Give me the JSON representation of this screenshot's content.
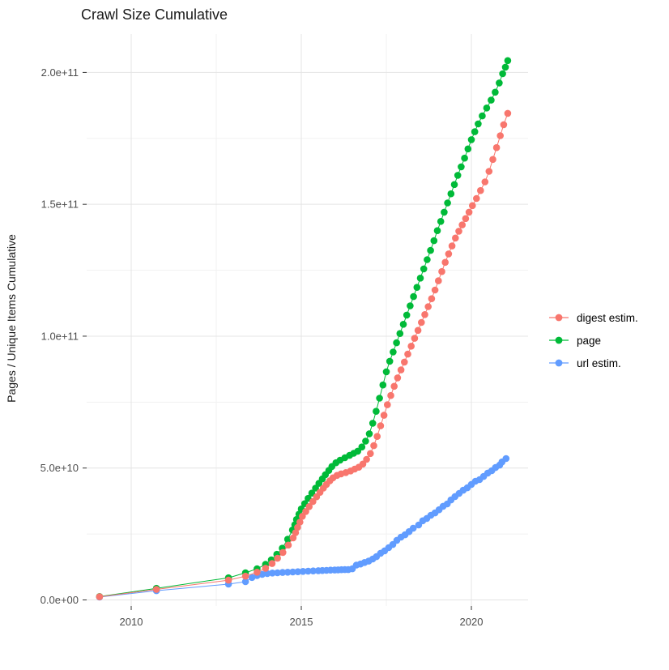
{
  "title": "Crawl Size Cumulative",
  "y_axis": {
    "label": "Pages / Unique Items Cumulative",
    "tick_labels": [
      "0.0e+00",
      "5.0e+10",
      "1.0e+11",
      "1.5e+11",
      "2.0e+11"
    ]
  },
  "x_axis": {
    "tick_labels": [
      "2010",
      "2015",
      "2020"
    ]
  },
  "chart_data": {
    "type": "line",
    "marker": "point",
    "title": "Crawl Size Cumulative",
    "xlabel": "",
    "ylabel": "Pages / Unique Items Cumulative",
    "x_ticks": [
      2010,
      2015,
      2020
    ],
    "x_minor_ticks": [
      2012.5,
      2017.5
    ],
    "y_ticks": [
      0,
      50,
      100,
      150,
      200
    ],
    "y_minor_ticks": [
      25,
      75,
      125,
      175
    ],
    "y_tick_labels": [
      "0.0e+00",
      "5.0e+10",
      "1.0e+11",
      "1.5e+11",
      "2.0e+11"
    ],
    "x_tick_labels": [
      "2010",
      "2015",
      "2020"
    ],
    "xlim": [
      2008.7,
      2021.7
    ],
    "ylim_e9": [
      0,
      214.5
    ],
    "value_unit": "billions of pages / unique items (1 unit = 1e9)",
    "grid": true,
    "legend_position": "right",
    "series": [
      {
        "name": "digest estim.",
        "color": "#F8766D",
        "points": [
          [
            2009.07,
            1.2
          ],
          [
            2010.74,
            4.0
          ],
          [
            2012.86,
            7.5
          ],
          [
            2013.36,
            9.0
          ],
          [
            2013.7,
            10.5
          ],
          [
            2013.95,
            12.0
          ],
          [
            2014.14,
            13.8
          ],
          [
            2014.3,
            15.8
          ],
          [
            2014.46,
            18.0
          ],
          [
            2014.62,
            20.8
          ],
          [
            2014.76,
            23.5
          ],
          [
            2014.83,
            25.5
          ],
          [
            2014.89,
            27.5
          ],
          [
            2014.96,
            29.5
          ],
          [
            2015.03,
            31.7
          ],
          [
            2015.13,
            33.5
          ],
          [
            2015.23,
            35.4
          ],
          [
            2015.34,
            37.3
          ],
          [
            2015.45,
            39.1
          ],
          [
            2015.55,
            40.8
          ],
          [
            2015.65,
            42.4
          ],
          [
            2015.74,
            43.8
          ],
          [
            2015.84,
            45.2
          ],
          [
            2015.93,
            46.3
          ],
          [
            2016.05,
            47.2
          ],
          [
            2016.17,
            47.8
          ],
          [
            2016.31,
            48.3
          ],
          [
            2016.45,
            48.9
          ],
          [
            2016.57,
            49.6
          ],
          [
            2016.69,
            50.3
          ],
          [
            2016.81,
            51.5
          ],
          [
            2016.92,
            53.3
          ],
          [
            2017.03,
            55.5
          ],
          [
            2017.13,
            58.5
          ],
          [
            2017.23,
            62.0
          ],
          [
            2017.33,
            66.0
          ],
          [
            2017.43,
            70.0
          ],
          [
            2017.53,
            74.0
          ],
          [
            2017.63,
            77.5
          ],
          [
            2017.73,
            81.0
          ],
          [
            2017.83,
            84.2
          ],
          [
            2017.93,
            87.2
          ],
          [
            2018.03,
            90.2
          ],
          [
            2018.13,
            93.2
          ],
          [
            2018.23,
            96.2
          ],
          [
            2018.33,
            99.2
          ],
          [
            2018.43,
            102.2
          ],
          [
            2018.53,
            105.2
          ],
          [
            2018.63,
            108.2
          ],
          [
            2018.73,
            111.2
          ],
          [
            2018.83,
            114.2
          ],
          [
            2018.93,
            117.5
          ],
          [
            2019.03,
            121.0
          ],
          [
            2019.13,
            124.5
          ],
          [
            2019.23,
            128.0
          ],
          [
            2019.33,
            131.2
          ],
          [
            2019.43,
            134.2
          ],
          [
            2019.53,
            137.2
          ],
          [
            2019.63,
            139.8
          ],
          [
            2019.73,
            142.2
          ],
          [
            2019.83,
            144.6
          ],
          [
            2019.93,
            147.0
          ],
          [
            2020.03,
            149.5
          ],
          [
            2020.15,
            152.2
          ],
          [
            2020.27,
            155.2
          ],
          [
            2020.4,
            158.5
          ],
          [
            2020.52,
            162.5
          ],
          [
            2020.63,
            167.0
          ],
          [
            2020.74,
            171.5
          ],
          [
            2020.85,
            176.0
          ],
          [
            2020.95,
            180.2
          ],
          [
            2021.07,
            184.5
          ]
        ]
      },
      {
        "name": "page",
        "color": "#00BA38",
        "points": [
          [
            2009.07,
            1.3
          ],
          [
            2010.74,
            4.4
          ],
          [
            2012.86,
            8.4
          ],
          [
            2013.36,
            10.3
          ],
          [
            2013.7,
            11.8
          ],
          [
            2013.95,
            13.5
          ],
          [
            2014.12,
            15.2
          ],
          [
            2014.28,
            17.3
          ],
          [
            2014.44,
            19.6
          ],
          [
            2014.6,
            23.0
          ],
          [
            2014.74,
            26.5
          ],
          [
            2014.81,
            28.5
          ],
          [
            2014.86,
            30.5
          ],
          [
            2014.93,
            32.5
          ],
          [
            2015.0,
            34.5
          ],
          [
            2015.1,
            36.5
          ],
          [
            2015.2,
            38.5
          ],
          [
            2015.31,
            40.5
          ],
          [
            2015.42,
            42.4
          ],
          [
            2015.52,
            44.2
          ],
          [
            2015.62,
            45.9
          ],
          [
            2015.71,
            47.5
          ],
          [
            2015.81,
            49.1
          ],
          [
            2015.9,
            50.6
          ],
          [
            2016.02,
            52.0
          ],
          [
            2016.14,
            53.0
          ],
          [
            2016.28,
            53.9
          ],
          [
            2016.42,
            54.8
          ],
          [
            2016.54,
            55.6
          ],
          [
            2016.66,
            56.4
          ],
          [
            2016.78,
            58.0
          ],
          [
            2016.89,
            60.2
          ],
          [
            2017.0,
            63.0
          ],
          [
            2017.1,
            67.0
          ],
          [
            2017.2,
            71.5
          ],
          [
            2017.3,
            76.5
          ],
          [
            2017.4,
            81.5
          ],
          [
            2017.5,
            86.5
          ],
          [
            2017.6,
            90.5
          ],
          [
            2017.7,
            94.0
          ],
          [
            2017.8,
            97.5
          ],
          [
            2017.9,
            101.0
          ],
          [
            2018.0,
            104.5
          ],
          [
            2018.1,
            108.0
          ],
          [
            2018.2,
            111.5
          ],
          [
            2018.3,
            115.0
          ],
          [
            2018.4,
            118.5
          ],
          [
            2018.5,
            122.0
          ],
          [
            2018.6,
            125.5
          ],
          [
            2018.7,
            129.0
          ],
          [
            2018.8,
            132.5
          ],
          [
            2018.9,
            136.2
          ],
          [
            2019.0,
            140.0
          ],
          [
            2019.1,
            143.5
          ],
          [
            2019.2,
            147.0
          ],
          [
            2019.3,
            150.5
          ],
          [
            2019.4,
            154.0
          ],
          [
            2019.5,
            157.5
          ],
          [
            2019.6,
            161.0
          ],
          [
            2019.7,
            164.2
          ],
          [
            2019.8,
            167.5
          ],
          [
            2019.9,
            171.0
          ],
          [
            2020.0,
            174.5
          ],
          [
            2020.1,
            177.5
          ],
          [
            2020.2,
            180.5
          ],
          [
            2020.32,
            183.5
          ],
          [
            2020.45,
            186.5
          ],
          [
            2020.58,
            189.5
          ],
          [
            2020.7,
            192.5
          ],
          [
            2020.82,
            196.0
          ],
          [
            2020.92,
            199.5
          ],
          [
            2021.0,
            202.0
          ],
          [
            2021.07,
            204.5
          ]
        ]
      },
      {
        "name": "url estim.",
        "color": "#619CFF",
        "points": [
          [
            2009.07,
            1.1
          ],
          [
            2010.74,
            3.5
          ],
          [
            2012.86,
            6.0
          ],
          [
            2013.36,
            6.9
          ],
          [
            2013.55,
            8.5
          ],
          [
            2013.7,
            9.2
          ],
          [
            2013.85,
            9.7
          ],
          [
            2014.0,
            10.0
          ],
          [
            2014.15,
            10.2
          ],
          [
            2014.3,
            10.3
          ],
          [
            2014.45,
            10.4
          ],
          [
            2014.6,
            10.5
          ],
          [
            2014.75,
            10.6
          ],
          [
            2014.9,
            10.7
          ],
          [
            2015.05,
            10.8
          ],
          [
            2015.2,
            10.9
          ],
          [
            2015.35,
            11.0
          ],
          [
            2015.5,
            11.1
          ],
          [
            2015.62,
            11.15
          ],
          [
            2015.74,
            11.2
          ],
          [
            2015.86,
            11.3
          ],
          [
            2015.98,
            11.35
          ],
          [
            2016.08,
            11.4
          ],
          [
            2016.18,
            11.45
          ],
          [
            2016.28,
            11.5
          ],
          [
            2016.38,
            11.5
          ],
          [
            2016.5,
            11.8
          ],
          [
            2016.62,
            13.2
          ],
          [
            2016.74,
            13.6
          ],
          [
            2016.86,
            14.2
          ],
          [
            2016.98,
            14.7
          ],
          [
            2017.1,
            15.5
          ],
          [
            2017.21,
            16.4
          ],
          [
            2017.33,
            17.7
          ],
          [
            2017.45,
            18.6
          ],
          [
            2017.57,
            19.8
          ],
          [
            2017.69,
            21.0
          ],
          [
            2017.81,
            22.6
          ],
          [
            2017.93,
            23.8
          ],
          [
            2018.05,
            24.7
          ],
          [
            2018.17,
            25.9
          ],
          [
            2018.29,
            27.2
          ],
          [
            2018.45,
            28.4
          ],
          [
            2018.57,
            30.0
          ],
          [
            2018.69,
            30.9
          ],
          [
            2018.81,
            32.1
          ],
          [
            2018.93,
            33.0
          ],
          [
            2019.05,
            34.2
          ],
          [
            2019.17,
            35.5
          ],
          [
            2019.29,
            36.4
          ],
          [
            2019.4,
            37.9
          ],
          [
            2019.52,
            39.2
          ],
          [
            2019.64,
            40.4
          ],
          [
            2019.76,
            41.6
          ],
          [
            2019.88,
            42.5
          ],
          [
            2020.0,
            43.8
          ],
          [
            2020.12,
            45.0
          ],
          [
            2020.24,
            45.6
          ],
          [
            2020.36,
            46.8
          ],
          [
            2020.48,
            48.1
          ],
          [
            2020.6,
            49.0
          ],
          [
            2020.71,
            50.2
          ],
          [
            2020.83,
            51.1
          ],
          [
            2020.9,
            52.3
          ],
          [
            2021.02,
            53.6
          ]
        ]
      }
    ],
    "colors": {
      "digest_estim": "#F8766D",
      "page": "#00BA38",
      "url_estim": "#619CFF",
      "grid_major": "#E4E4E4",
      "grid_minor": "#F1F1F1",
      "tick_label": "#4d4d4d"
    }
  }
}
